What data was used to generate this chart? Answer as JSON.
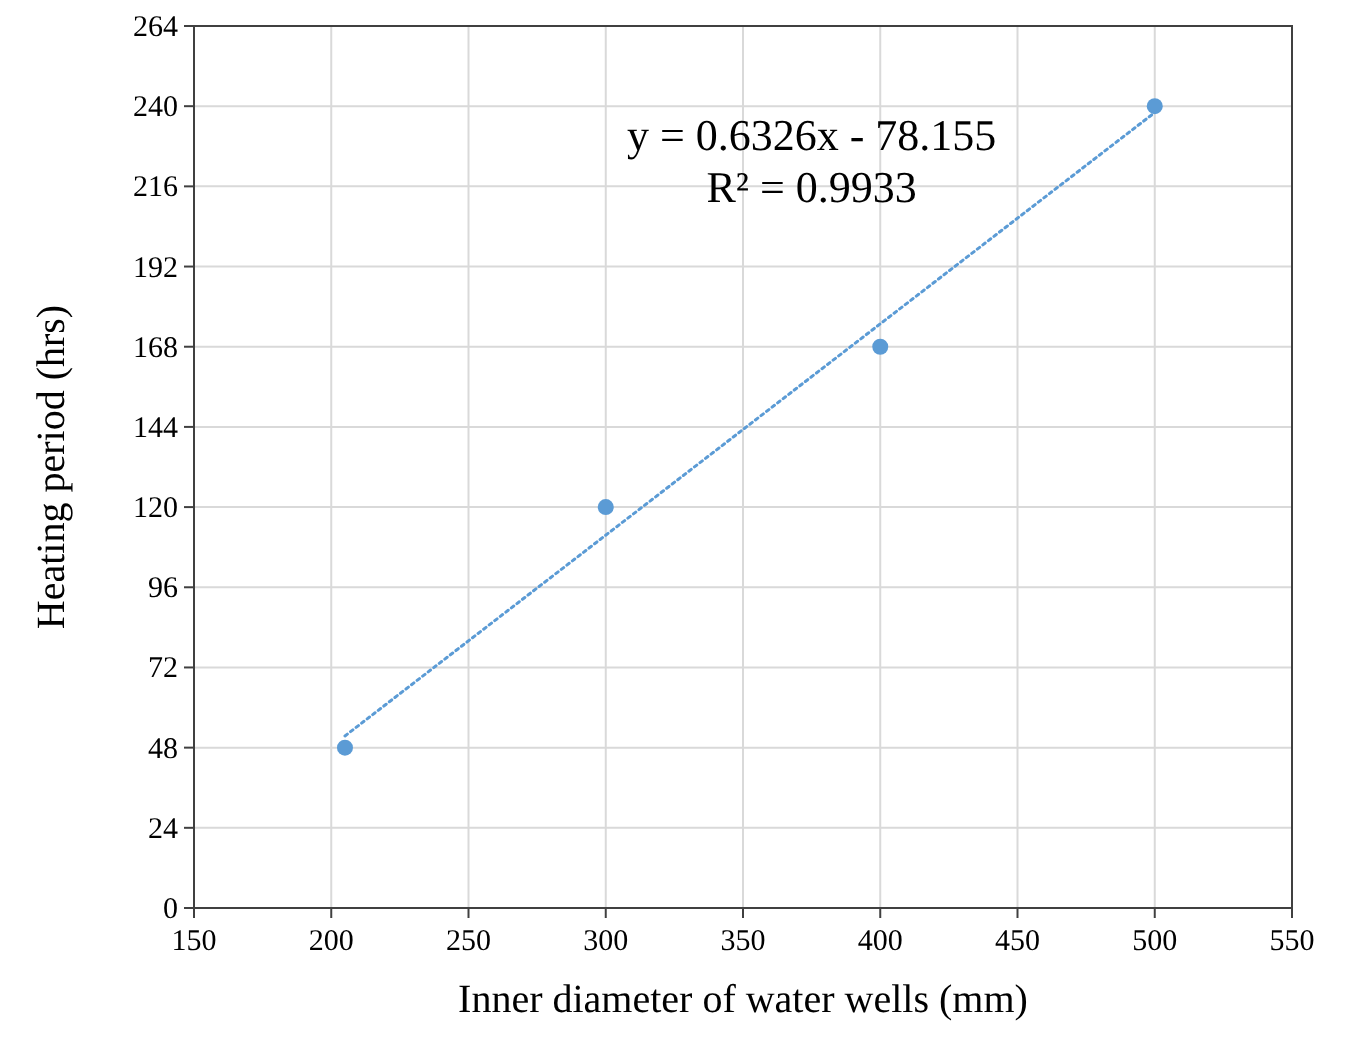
{
  "chart_data": {
    "type": "scatter",
    "xlabel": "Inner diameter of water wells (mm)",
    "ylabel": "Heating period (hrs)",
    "xlim": [
      150,
      550
    ],
    "xticks": [
      150,
      200,
      250,
      300,
      350,
      400,
      450,
      500,
      550
    ],
    "ylim": [
      0,
      264
    ],
    "yticks": [
      0,
      24,
      48,
      72,
      96,
      120,
      144,
      168,
      192,
      216,
      240,
      264
    ],
    "grid": true,
    "marker": "circle",
    "annotations": [
      "y = 0.6326x - 78.155",
      "R² = 0.9933"
    ],
    "series": [
      {
        "color": "#5b9bd5",
        "x": [
          205,
          300,
          400,
          500
        ],
        "values": [
          48,
          120,
          168,
          240
        ]
      },
      {
        "type": "line",
        "color": "#5b9bd5",
        "line_style": "dotted",
        "marker": "none",
        "x": [
          205,
          500
        ],
        "values": [
          51.5,
          238.1
        ]
      }
    ]
  }
}
